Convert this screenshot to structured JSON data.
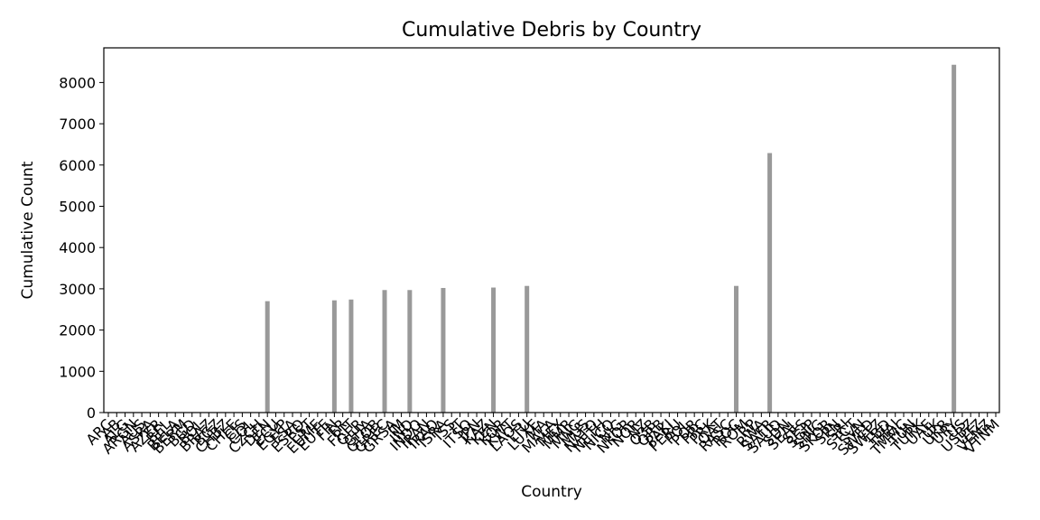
{
  "chart_data": {
    "type": "bar",
    "title": "Cumulative Debris by Country",
    "xlabel": "Country",
    "ylabel": "Cumulative Count",
    "ylim": [
      0,
      8840
    ],
    "yticks": [
      0,
      1000,
      2000,
      3000,
      4000,
      5000,
      6000,
      7000,
      8000
    ],
    "bar_color": "#999999",
    "grid": false,
    "categories": [
      "ARC",
      "AB",
      "ALG",
      "ARGN",
      "AUS",
      "ASRA",
      "AZER",
      "BEL",
      "BELA",
      "BERM",
      "BGD",
      "BOL",
      "BRAZ",
      "BGZ",
      "CHBZ",
      "CHLE",
      "CIS",
      "COL",
      "CZCH",
      "DEN",
      "ECU",
      "EGYP",
      "ESA",
      "ESRO",
      "EST",
      "EUME",
      "EUTE",
      "FIN",
      "FR",
      "FRIT",
      "GER",
      "GHA",
      "GLOB",
      "GREC",
      "GRSA",
      "IM",
      "IND",
      "INDO",
      "IRAN",
      "IRAQ",
      "ISRA",
      "ISS",
      "IT",
      "ITSO",
      "JPN",
      "KAZ",
      "KEN",
      "KOR",
      "KWT",
      "LAOS",
      "LTU",
      "LUXE",
      "MA",
      "MALA",
      "MEX",
      "MMR",
      "MNG",
      "MUS",
      "NATO",
      "NETH",
      "NICO",
      "NIG",
      "NKOR",
      "NOR",
      "NZ",
      "O3B",
      "ORB",
      "PAKI",
      "PERU",
      "POL",
      "POR",
      "PRC",
      "PRK",
      "QAT",
      "RASC",
      "ROC",
      "ROM",
      "RP",
      "RWA",
      "SAFR",
      "SAUD",
      "SDN",
      "SEAL",
      "SES",
      "SGJP",
      "SING",
      "SKOR",
      "SPN",
      "SRI",
      "STCT",
      "SVN",
      "SWED",
      "SWTZ",
      "TBD",
      "THAI",
      "TMMC",
      "TUN",
      "TURK",
      "UAE",
      "UK",
      "UKR",
      "URY",
      "US",
      "USBZ",
      "UTZ",
      "VENZ",
      "VTNM"
    ],
    "values": [
      0,
      0,
      0,
      0,
      0,
      0,
      0,
      0,
      0,
      0,
      0,
      0,
      0,
      0,
      0,
      0,
      0,
      0,
      0,
      2700,
      0,
      0,
      0,
      0,
      0,
      0,
      0,
      2720,
      0,
      2740,
      0,
      0,
      0,
      2970,
      0,
      0,
      2970,
      0,
      0,
      0,
      3020,
      0,
      0,
      0,
      0,
      0,
      3030,
      0,
      0,
      0,
      3070,
      0,
      0,
      0,
      0,
      0,
      0,
      0,
      0,
      0,
      0,
      0,
      0,
      0,
      0,
      0,
      0,
      0,
      0,
      0,
      0,
      0,
      0,
      0,
      0,
      3070,
      0,
      0,
      0,
      6290,
      0,
      0,
      0,
      0,
      0,
      0,
      0,
      0,
      0,
      0,
      0,
      0,
      0,
      0,
      0,
      0,
      0,
      0,
      0,
      0,
      0,
      8430,
      0,
      0,
      0,
      0,
      0
    ]
  }
}
